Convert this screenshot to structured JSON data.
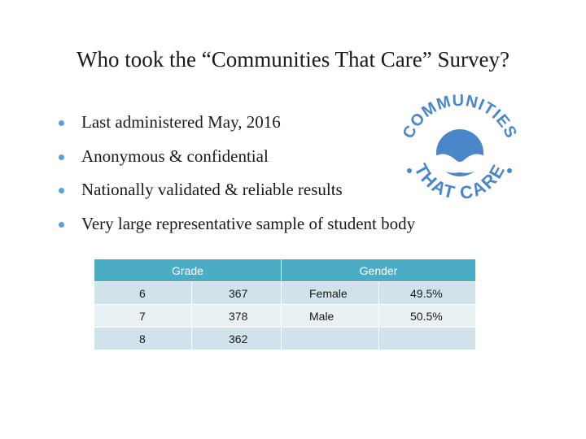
{
  "slide": {
    "title": "Who took the “Communities That Care” Survey?",
    "bullets": [
      "Last administered May, 2016",
      "Anonymous & confidential",
      "Nationally validated & reliable results",
      "Very large representative sample of student body"
    ]
  },
  "logo": {
    "text": "COMMUNITIES THAT CARE",
    "color": "#4a86c8"
  },
  "table": {
    "headers": [
      "Grade",
      "Gender"
    ],
    "rows": [
      [
        "6",
        "367",
        "Female",
        "49.5%"
      ],
      [
        "7",
        "378",
        "Male",
        "50.5%"
      ],
      [
        "8",
        "362",
        "",
        ""
      ]
    ]
  },
  "colors": {
    "bullet": "#5b9fd6",
    "table_header": "#4bacc6",
    "row_dark": "#d0e3ea",
    "row_light": "#e9f1f5",
    "logo_blue": "#4a86c8"
  }
}
